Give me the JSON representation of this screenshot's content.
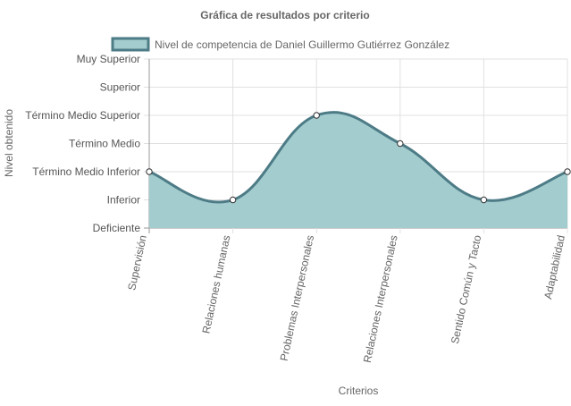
{
  "chart_data": {
    "type": "area",
    "title": "Gráfica de resultados por criterio",
    "xlabel": "Criterios",
    "ylabel": "Nivel obtenido",
    "categories": [
      "Supervisión",
      "Relaciones humanas",
      "Problemas Interpersonales",
      "Relaciones Interpersonales",
      "Sentido Común y Tacto",
      "Adaptabilidad"
    ],
    "y_levels": [
      "Deficiente",
      "Inferior",
      "Término Medio Inferior",
      "Término Medio",
      "Término Medio Superior",
      "Superior",
      "Muy Superior"
    ],
    "ylim": [
      0,
      6
    ],
    "series": [
      {
        "name": "Nivel de competencia de Daniel Guillermo Gutiérrez González",
        "values": [
          2,
          1,
          4,
          3,
          1,
          2
        ]
      }
    ],
    "legend_position": "top",
    "grid": true,
    "colors": {
      "fill": "#a3cccf",
      "line": "#4d7b86",
      "grid": "#e0e0e0",
      "axis": "#999999",
      "text": "#666666"
    }
  }
}
